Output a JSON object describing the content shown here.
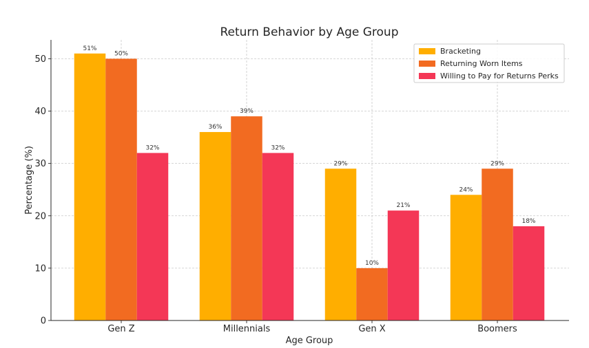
{
  "chart_data": {
    "type": "bar",
    "title": "Return Behavior by Age Group",
    "xlabel": "Age Group",
    "ylabel": "Percentage (%)",
    "categories": [
      "Gen Z",
      "Millennials",
      "Gen X",
      "Boomers"
    ],
    "series": [
      {
        "name": "Bracketing",
        "values": [
          51,
          36,
          29,
          24
        ],
        "labels": [
          "51%",
          "36%",
          "29%",
          "24%"
        ],
        "color": "#FFAE00"
      },
      {
        "name": "Returning Worn Items",
        "values": [
          50,
          39,
          10,
          29
        ],
        "labels": [
          "50%",
          "39%",
          "10%",
          "29%"
        ],
        "color": "#F26B21"
      },
      {
        "name": "Willing to Pay for Returns Perks",
        "values": [
          32,
          32,
          21,
          18
        ],
        "labels": [
          "32%",
          "32%",
          "21%",
          "18%"
        ],
        "color": "#F43756"
      }
    ],
    "ylim": [
      0,
      53.6
    ],
    "yticks": [
      "0",
      "10",
      "20",
      "30",
      "40",
      "50"
    ],
    "grid": true,
    "legend_position": "top-right"
  }
}
